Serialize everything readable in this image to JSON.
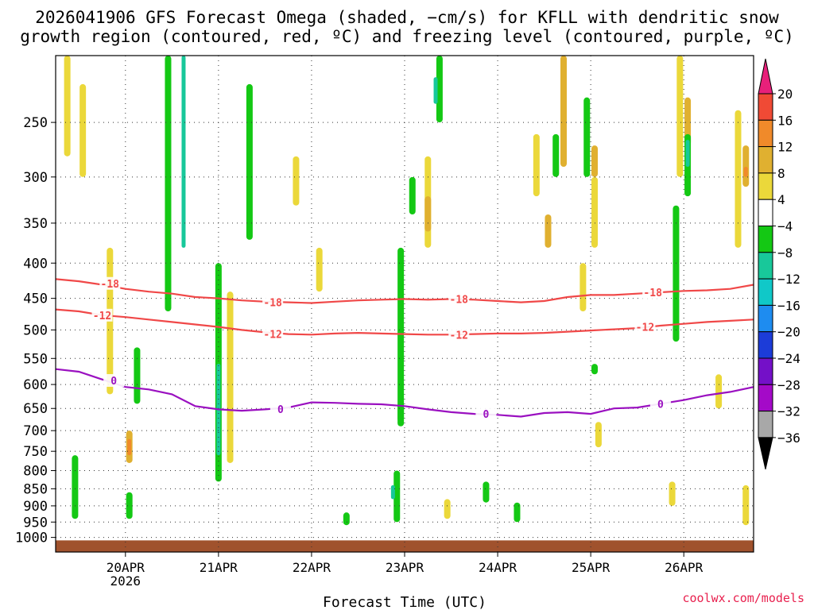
{
  "title_lines": [
    "2026041906 GFS Forecast Omega (shaded, −cm/s) for KFLL with dendritic snow",
    "growth region (contoured, red, ºC) and freezing level (contoured, purple, ºC)"
  ],
  "credit": "coolwx.com/models",
  "chart_data": {
    "type": "heatmap",
    "xlabel": "Forecast Time (UTC)",
    "ylabel": "",
    "x_range_hours": [
      0,
      180
    ],
    "x_ticks": [
      {
        "label": "20APR",
        "sublabel": "2026",
        "hour": 18
      },
      {
        "label": "21APR",
        "sublabel": "",
        "hour": 42
      },
      {
        "label": "22APR",
        "sublabel": "",
        "hour": 66
      },
      {
        "label": "23APR",
        "sublabel": "",
        "hour": 90
      },
      {
        "label": "24APR",
        "sublabel": "",
        "hour": 114
      },
      {
        "label": "25APR",
        "sublabel": "",
        "hour": 138
      },
      {
        "label": "26APR",
        "sublabel": "",
        "hour": 162
      }
    ],
    "y_axis": "pressure (hPa), log scale, inverted",
    "y_range": [
      1050,
      200
    ],
    "y_ticks": [
      250,
      300,
      350,
      400,
      450,
      500,
      550,
      600,
      650,
      700,
      750,
      800,
      850,
      900,
      950,
      1000
    ],
    "grid": true,
    "colorbar": {
      "levels": [
        "20",
        "16",
        "12",
        "8",
        "4",
        "−4",
        "−8",
        "−12",
        "−16",
        "−20",
        "−24",
        "−28",
        "−32",
        "−36"
      ],
      "colors": [
        "#e8204e",
        "#f04a35",
        "#f08a2a",
        "#e0b030",
        "#ebd83a",
        "#ffffff",
        "#14c814",
        "#18c89a",
        "#10c8c8",
        "#1e8cf0",
        "#1c3cd8",
        "#7410c8",
        "#a40ac8",
        "#a8a8a8",
        "#000000"
      ],
      "top_arrow_color": "#e8207a",
      "bottom_arrow_color": "#000000"
    },
    "contours": [
      {
        "name": "-18",
        "color": "#f04848",
        "hours": [
          0,
          6,
          12,
          18,
          24,
          30,
          36,
          42,
          48,
          54,
          60,
          66,
          72,
          78,
          84,
          90,
          96,
          102,
          108,
          114,
          120,
          126,
          132,
          138,
          144,
          150,
          156,
          162,
          168,
          174,
          180
        ],
        "pressure": [
          422,
          425,
          430,
          436,
          440,
          443,
          448,
          450,
          453,
          455,
          456,
          457,
          455,
          453,
          452,
          451,
          452,
          451,
          452,
          454,
          456,
          454,
          448,
          445,
          445,
          443,
          441,
          439,
          438,
          436,
          430
        ],
        "labels": [
          {
            "hour": 14,
            "pressure": 428
          },
          {
            "hour": 56,
            "pressure": 456
          },
          {
            "hour": 104,
            "pressure": 451
          },
          {
            "hour": 154,
            "pressure": 441
          }
        ]
      },
      {
        "name": "-12",
        "color": "#f04848",
        "hours": [
          0,
          6,
          12,
          18,
          24,
          30,
          36,
          42,
          48,
          54,
          60,
          66,
          72,
          78,
          84,
          90,
          96,
          102,
          108,
          114,
          120,
          126,
          132,
          138,
          144,
          150,
          156,
          162,
          168,
          174,
          180
        ],
        "pressure": [
          467,
          470,
          476,
          479,
          483,
          487,
          491,
          495,
          500,
          504,
          507,
          508,
          506,
          505,
          506,
          507,
          508,
          508,
          507,
          506,
          506,
          505,
          503,
          501,
          499,
          497,
          493,
          490,
          487,
          485,
          483
        ],
        "labels": [
          {
            "hour": 12,
            "pressure": 476
          },
          {
            "hour": 56,
            "pressure": 507
          },
          {
            "hour": 104,
            "pressure": 508
          },
          {
            "hour": 152,
            "pressure": 495
          }
        ]
      },
      {
        "name": "0",
        "color": "#9a10c0",
        "hours": [
          0,
          6,
          12,
          18,
          24,
          30,
          36,
          42,
          48,
          54,
          60,
          66,
          72,
          78,
          84,
          90,
          96,
          102,
          108,
          114,
          120,
          126,
          132,
          138,
          144,
          150,
          156,
          162,
          168,
          174,
          180
        ],
        "pressure": [
          570,
          575,
          590,
          605,
          610,
          620,
          645,
          652,
          655,
          652,
          648,
          637,
          638,
          640,
          641,
          645,
          652,
          658,
          662,
          664,
          668,
          660,
          658,
          662,
          650,
          648,
          640,
          632,
          622,
          615,
          605
        ],
        "labels": [
          {
            "hour": 15,
            "pressure": 592
          },
          {
            "hour": 58,
            "pressure": 651
          },
          {
            "hour": 111,
            "pressure": 662
          },
          {
            "hour": 156,
            "pressure": 640
          }
        ]
      }
    ],
    "omega_features": [
      {
        "hour": 29,
        "p_top": 200,
        "p_bot": 470,
        "value": -8
      },
      {
        "hour": 33,
        "p_top": 200,
        "p_bot": 380,
        "value": -12
      },
      {
        "hour": 42,
        "p_top": 400,
        "p_bot": 830,
        "value": -8
      },
      {
        "hour": 42,
        "p_top": 560,
        "p_bot": 760,
        "value": -12
      },
      {
        "hour": 14,
        "p_top": 380,
        "p_bot": 620,
        "value": 4
      },
      {
        "hour": 19,
        "p_top": 700,
        "p_bot": 780,
        "value": 8
      },
      {
        "hour": 19,
        "p_top": 720,
        "p_bot": 760,
        "value": 12
      },
      {
        "hour": 19,
        "p_top": 860,
        "p_bot": 940,
        "value": -8
      },
      {
        "hour": 21,
        "p_top": 530,
        "p_bot": 640,
        "value": -8
      },
      {
        "hour": 5,
        "p_top": 760,
        "p_bot": 940,
        "value": -8
      },
      {
        "hour": 3,
        "p_top": 200,
        "p_bot": 280,
        "value": 4
      },
      {
        "hour": 7,
        "p_top": 220,
        "p_bot": 300,
        "value": 4
      },
      {
        "hour": 45,
        "p_top": 440,
        "p_bot": 780,
        "value": 4
      },
      {
        "hour": 50,
        "p_top": 220,
        "p_bot": 370,
        "value": -8
      },
      {
        "hour": 89,
        "p_top": 640,
        "p_bot": 680,
        "value": -8
      },
      {
        "hour": 89,
        "p_top": 380,
        "p_bot": 690,
        "value": -8
      },
      {
        "hour": 88,
        "p_top": 800,
        "p_bot": 950,
        "value": -8
      },
      {
        "hour": 87,
        "p_top": 840,
        "p_bot": 880,
        "value": -12
      },
      {
        "hour": 99,
        "p_top": 200,
        "p_bot": 250,
        "value": -8
      },
      {
        "hour": 98,
        "p_top": 215,
        "p_bot": 235,
        "value": -12
      },
      {
        "hour": 96,
        "p_top": 280,
        "p_bot": 380,
        "value": 4
      },
      {
        "hour": 96,
        "p_top": 320,
        "p_bot": 360,
        "value": 8
      },
      {
        "hour": 92,
        "p_top": 300,
        "p_bot": 340,
        "value": -8
      },
      {
        "hour": 111,
        "p_top": 840,
        "p_bot": 880,
        "value": -12
      },
      {
        "hour": 111,
        "p_top": 830,
        "p_bot": 890,
        "value": -8
      },
      {
        "hour": 131,
        "p_top": 200,
        "p_bot": 290,
        "value": 8
      },
      {
        "hour": 129,
        "p_top": 260,
        "p_bot": 300,
        "value": -8
      },
      {
        "hour": 137,
        "p_top": 230,
        "p_bot": 300,
        "value": -8
      },
      {
        "hour": 139,
        "p_top": 270,
        "p_bot": 300,
        "value": 8
      },
      {
        "hour": 124,
        "p_top": 260,
        "p_bot": 320,
        "value": 4
      },
      {
        "hour": 127,
        "p_top": 340,
        "p_bot": 380,
        "value": 8
      },
      {
        "hour": 139,
        "p_top": 300,
        "p_bot": 380,
        "value": 4
      },
      {
        "hour": 161,
        "p_top": 200,
        "p_bot": 300,
        "value": 4
      },
      {
        "hour": 163,
        "p_top": 230,
        "p_bot": 270,
        "value": 8
      },
      {
        "hour": 160,
        "p_top": 330,
        "p_bot": 520,
        "value": -8
      },
      {
        "hour": 163,
        "p_top": 260,
        "p_bot": 320,
        "value": -8
      },
      {
        "hour": 163,
        "p_top": 265,
        "p_bot": 290,
        "value": -12
      },
      {
        "hour": 176,
        "p_top": 240,
        "p_bot": 380,
        "value": 4
      },
      {
        "hour": 178,
        "p_top": 270,
        "p_bot": 310,
        "value": 8
      },
      {
        "hour": 178,
        "p_top": 290,
        "p_bot": 300,
        "value": 12
      },
      {
        "hour": 178,
        "p_top": 840,
        "p_bot": 960,
        "value": 4
      },
      {
        "hour": 171,
        "p_top": 580,
        "p_bot": 650,
        "value": 4
      },
      {
        "hour": 159,
        "p_top": 830,
        "p_bot": 900,
        "value": 4
      },
      {
        "hour": 140,
        "p_top": 680,
        "p_bot": 740,
        "value": 4
      },
      {
        "hour": 136,
        "p_top": 400,
        "p_bot": 470,
        "value": 4
      },
      {
        "hour": 119,
        "p_top": 890,
        "p_bot": 950,
        "value": -8
      },
      {
        "hour": 75,
        "p_top": 920,
        "p_bot": 960,
        "value": -8
      },
      {
        "hour": 62,
        "p_top": 280,
        "p_bot": 330,
        "value": 4
      },
      {
        "hour": 68,
        "p_top": 380,
        "p_bot": 440,
        "value": 4
      },
      {
        "hour": 101,
        "p_top": 880,
        "p_bot": 940,
        "value": 4
      },
      {
        "hour": 139,
        "p_top": 560,
        "p_bot": 580,
        "value": -8
      }
    ],
    "surface": {
      "color": "#a0522d",
      "pressure_top": 1010
    }
  }
}
